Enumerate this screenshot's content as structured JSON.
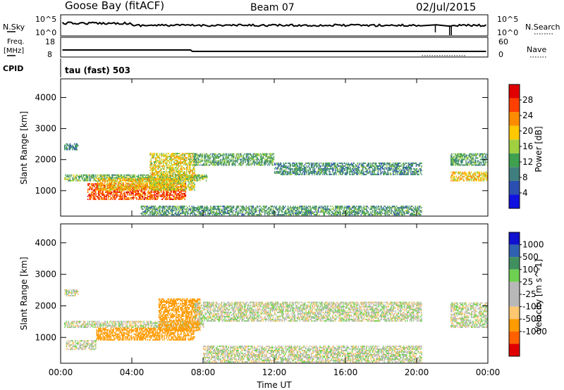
{
  "header": {
    "station": "Goose Bay (fitACF)",
    "beam": "Beam 07",
    "date": "02/Jul/2015"
  },
  "strip_panels": {
    "nsky": {
      "label": "N.Sky",
      "ticks": [
        "10^5",
        "10^0"
      ]
    },
    "nsearch": {
      "label": "N.Search",
      "ticks": [
        "10^5",
        "10^0"
      ]
    },
    "freq": {
      "label_line1": "Freq.",
      "label_line2": "[MHz]",
      "ticks": [
        "18",
        "8"
      ]
    },
    "nave": {
      "label": "Nave",
      "ticks": [
        "60",
        "0"
      ]
    },
    "cpid": {
      "label": "CPID",
      "value": "tau (fast) 503"
    }
  },
  "colors": {
    "power_scale": [
      "#1010e0",
      "#2a4fb0",
      "#3f7f7f",
      "#3fa050",
      "#a0d040",
      "#ffc800",
      "#ff8c00",
      "#ff4000",
      "#e00000"
    ],
    "velocity_scale": [
      "#e00000",
      "#ff6000",
      "#ff9a00",
      "#ffc870",
      "#b8b8b8",
      "#b8b8b8",
      "#6ed050",
      "#3f8f5f",
      "#3060b0",
      "#1010d0"
    ],
    "ground_scatter": "#b8b8b8"
  },
  "chart_data": [
    {
      "type": "heatmap",
      "title": "",
      "xlabel": "",
      "ylabel": "Slant Range [km]",
      "x_ticks": [
        "00:00",
        "04:00",
        "08:00",
        "12:00",
        "16:00",
        "20:00",
        "00:00"
      ],
      "xlim_hours": [
        0,
        24
      ],
      "y_ticks": [
        1000,
        2000,
        3000,
        4000
      ],
      "ylim": [
        180,
        4600
      ],
      "colorbar": {
        "label": "Power [dB]",
        "ticks": [
          4,
          8,
          12,
          16,
          20,
          24,
          28
        ],
        "range": [
          0,
          32
        ]
      },
      "data_gaps_hours": [
        [
          20.3,
          21.0
        ],
        [
          21.2,
          21.9
        ]
      ],
      "echo_regions": [
        {
          "t_start": 0.2,
          "t_end": 8.2,
          "range_km": [
            1300,
            1500
          ],
          "power_db": 14
        },
        {
          "t_start": 1.5,
          "t_end": 7.0,
          "range_km": [
            700,
            1200
          ],
          "power_db": 26
        },
        {
          "t_start": 2.0,
          "t_end": 6.5,
          "range_km": [
            1000,
            1400
          ],
          "power_db": 20
        },
        {
          "t_start": 5.0,
          "t_end": 7.5,
          "range_km": [
            1000,
            2200
          ],
          "power_db": 18
        },
        {
          "t_start": 0.2,
          "t_end": 1.0,
          "range_km": [
            2300,
            2500
          ],
          "power_db": 9
        },
        {
          "t_start": 7.5,
          "t_end": 12.0,
          "range_km": [
            1800,
            2200
          ],
          "power_db": 12
        },
        {
          "t_start": 12.0,
          "t_end": 20.3,
          "range_km": [
            1500,
            1900
          ],
          "power_db": 10
        },
        {
          "t_start": 4.5,
          "t_end": 20.3,
          "range_km": [
            200,
            500
          ],
          "power_db": 11
        },
        {
          "t_start": 21.9,
          "t_end": 24.0,
          "range_km": [
            1300,
            1600
          ],
          "power_db": 20
        },
        {
          "t_start": 21.9,
          "t_end": 24.0,
          "range_km": [
            1800,
            2200
          ],
          "power_db": 12
        }
      ]
    },
    {
      "type": "heatmap",
      "title": "",
      "xlabel": "Time UT",
      "ylabel": "Slant Range [km]",
      "x_ticks": [
        "00:00",
        "04:00",
        "08:00",
        "12:00",
        "16:00",
        "20:00",
        "00:00"
      ],
      "xlim_hours": [
        0,
        24
      ],
      "y_ticks": [
        1000,
        2000,
        3000,
        4000
      ],
      "ylim": [
        180,
        4600
      ],
      "colorbar": {
        "label": "Velocity [m s^-1]",
        "ticks": [
          "1000",
          "500",
          "100",
          "25",
          "-25",
          "-100",
          "-500",
          "-1000"
        ]
      },
      "data_gaps_hours": [
        [
          20.3,
          21.0
        ],
        [
          21.2,
          21.9
        ]
      ],
      "echo_regions": [
        {
          "t_start": 0.2,
          "t_end": 8.0,
          "range_km": [
            1300,
            1500
          ],
          "velocity_ms": 0
        },
        {
          "t_start": 2.0,
          "t_end": 7.5,
          "range_km": [
            900,
            1300
          ],
          "velocity_ms": -150
        },
        {
          "t_start": 5.5,
          "t_end": 7.8,
          "range_km": [
            1200,
            2200
          ],
          "velocity_ms": -150
        },
        {
          "t_start": 0.3,
          "t_end": 2.0,
          "range_km": [
            600,
            900
          ],
          "velocity_ms": 0
        },
        {
          "t_start": 0.2,
          "t_end": 1.0,
          "range_km": [
            2300,
            2500
          ],
          "velocity_ms": 0
        },
        {
          "t_start": 7.5,
          "t_end": 20.3,
          "range_km": [
            1500,
            2100
          ],
          "velocity_ms": 0
        },
        {
          "t_start": 8.0,
          "t_end": 20.3,
          "range_km": [
            200,
            700
          ],
          "velocity_ms": 0
        },
        {
          "t_start": 21.9,
          "t_end": 24.0,
          "range_km": [
            1300,
            2100
          ],
          "velocity_ms": 0
        }
      ]
    }
  ]
}
